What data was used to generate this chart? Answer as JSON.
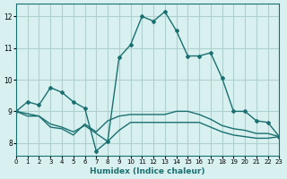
{
  "title": "",
  "xlabel": "Humidex (Indice chaleur)",
  "ylabel": "",
  "bg_color": "#d8f0f0",
  "grid_color": "#b0d0d0",
  "line_color": "#1a7070",
  "xlim": [
    0,
    23
  ],
  "ylim": [
    7.6,
    12.4
  ],
  "yticks": [
    8,
    9,
    10,
    11,
    12
  ],
  "xticks": [
    0,
    1,
    2,
    3,
    4,
    5,
    6,
    7,
    8,
    9,
    10,
    11,
    12,
    13,
    14,
    15,
    16,
    17,
    18,
    19,
    20,
    21,
    22,
    23
  ],
  "line1_x": [
    0,
    1,
    2,
    3,
    4,
    5,
    6,
    7,
    8,
    9,
    10,
    11,
    12,
    13,
    14,
    15,
    16,
    17,
    18,
    19,
    20,
    21,
    22,
    23
  ],
  "line1_y": [
    9.0,
    9.3,
    9.2,
    9.75,
    9.6,
    9.3,
    9.1,
    7.75,
    8.05,
    10.7,
    11.1,
    12.0,
    11.85,
    12.15,
    11.55,
    10.75,
    10.75,
    10.85,
    10.05,
    9.0,
    9.0,
    8.7,
    8.65,
    8.2
  ],
  "line2_x": [
    0,
    1,
    2,
    3,
    4,
    5,
    6,
    7,
    8,
    9,
    10,
    11,
    12,
    13,
    14,
    15,
    16,
    17,
    18,
    19,
    20,
    21,
    22,
    23
  ],
  "line2_y": [
    9.0,
    8.85,
    8.85,
    8.5,
    8.45,
    8.25,
    8.6,
    8.35,
    8.7,
    8.85,
    8.9,
    8.9,
    8.9,
    8.9,
    9.0,
    9.0,
    8.9,
    8.75,
    8.55,
    8.45,
    8.4,
    8.3,
    8.3,
    8.2
  ],
  "line3_x": [
    0,
    2,
    3,
    4,
    5,
    6,
    7,
    8,
    9,
    10,
    11,
    12,
    13,
    14,
    15,
    16,
    17,
    18,
    19,
    20,
    21,
    22,
    23
  ],
  "line3_y": [
    9.0,
    8.85,
    8.6,
    8.5,
    8.35,
    8.55,
    8.3,
    8.05,
    8.4,
    8.65,
    8.65,
    8.65,
    8.65,
    8.65,
    8.65,
    8.65,
    8.5,
    8.35,
    8.25,
    8.2,
    8.15,
    8.15,
    8.2
  ]
}
